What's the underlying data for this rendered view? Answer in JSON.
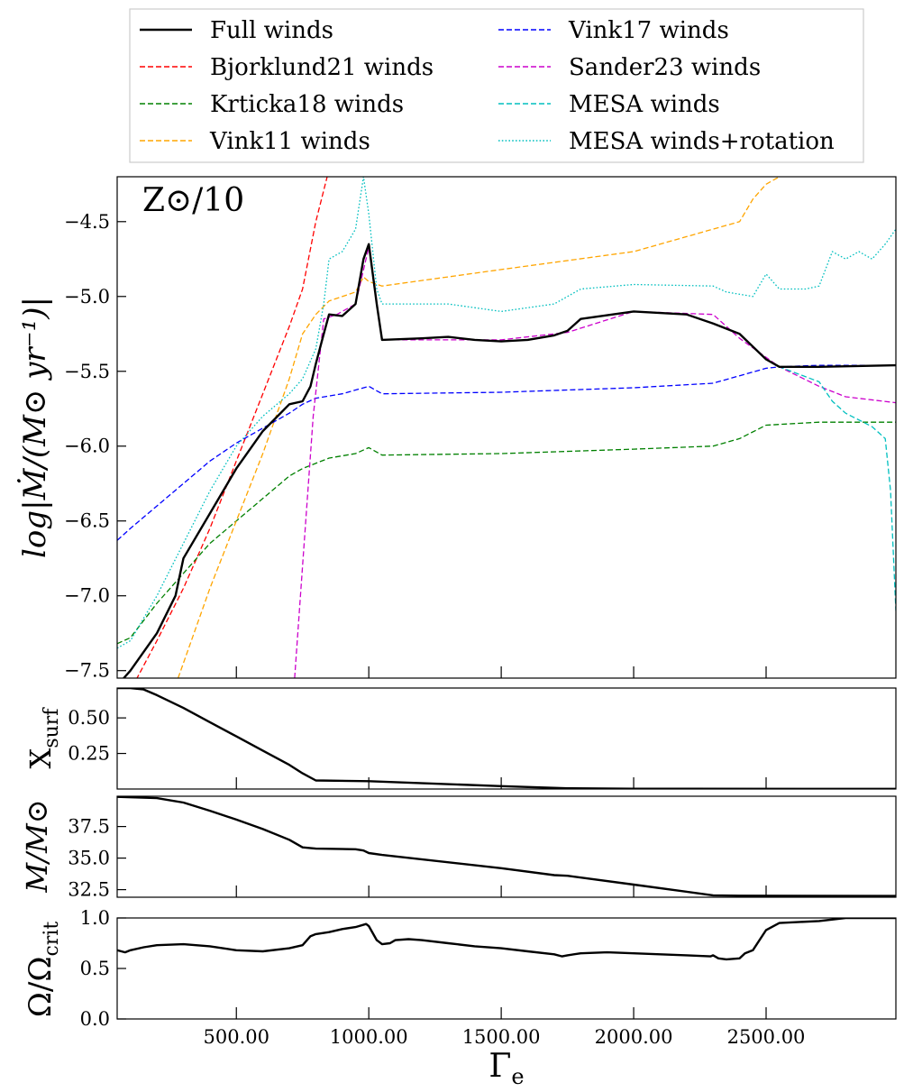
{
  "legend": {
    "entries": [
      {
        "label": "Full winds",
        "color": "#000000",
        "style": "solid"
      },
      {
        "label": "Bjorklund21 winds",
        "color": "#ff0000",
        "style": "dashed"
      },
      {
        "label": "Krticka18 winds",
        "color": "#008000",
        "style": "dashed"
      },
      {
        "label": "Vink11 winds",
        "color": "#ffa500",
        "style": "dashed"
      },
      {
        "label": "Vink17 winds",
        "color": "#0000ff",
        "style": "dashed"
      },
      {
        "label": "Sander23 winds",
        "color": "#cc00cc",
        "style": "dashed"
      },
      {
        "label": "MESA winds",
        "color": "#00bfbf",
        "style": "dashed"
      },
      {
        "label": "MESA winds+rotation",
        "color": "#00bfbf",
        "style": "dotted"
      }
    ]
  },
  "annotation": "Z⊙/10",
  "xlabel_main": "Γ",
  "xlabel_sub": "e",
  "chart_data": [
    {
      "type": "line",
      "panel": "mdot",
      "ylabel": "log|Ṁ/(M⊙ yr⁻¹)|",
      "xlim": [
        50,
        2990
      ],
      "ylim": [
        -7.55,
        -4.2
      ],
      "yticks": [
        -7.5,
        -7.0,
        -6.5,
        -6.0,
        -5.5,
        -5.0,
        -4.5
      ],
      "ytick_labels": [
        "−7.5",
        "−7.0",
        "−6.5",
        "−6.0",
        "−5.5",
        "−5.0",
        "−4.5"
      ],
      "series": [
        {
          "name": "Bjorklund21 winds",
          "color": "#ff0000",
          "style": "dashed",
          "x": [
            50,
            200,
            300,
            400,
            500,
            600,
            700,
            750,
            800,
            850
          ],
          "y": [
            -7.8,
            -7.3,
            -6.95,
            -6.55,
            -6.1,
            -5.65,
            -5.2,
            -4.95,
            -4.5,
            -4.15
          ]
        },
        {
          "name": "Krticka18 winds",
          "color": "#008000",
          "style": "dashed",
          "x": [
            50,
            100,
            200,
            300,
            400,
            500,
            600,
            700,
            750,
            850,
            950,
            1000,
            1050,
            1500,
            2000,
            2300,
            2400,
            2500,
            2700,
            2990
          ],
          "y": [
            -7.32,
            -7.28,
            -7.05,
            -6.85,
            -6.65,
            -6.5,
            -6.35,
            -6.2,
            -6.15,
            -6.08,
            -6.05,
            -6.01,
            -6.06,
            -6.05,
            -6.02,
            -6.0,
            -5.95,
            -5.86,
            -5.84,
            -5.84
          ]
        },
        {
          "name": "Vink11 winds",
          "color": "#ffa500",
          "style": "dashed",
          "x": [
            280,
            400,
            500,
            600,
            700,
            750,
            800,
            850,
            950,
            980,
            1000,
            1050,
            1500,
            2000,
            2300,
            2400,
            2450,
            2500,
            2550
          ],
          "y": [
            -7.55,
            -6.95,
            -6.5,
            -6.05,
            -5.55,
            -5.25,
            -5.12,
            -5.03,
            -4.97,
            -4.87,
            -4.9,
            -4.93,
            -4.82,
            -4.7,
            -4.55,
            -4.5,
            -4.35,
            -4.25,
            -4.2
          ]
        },
        {
          "name": "Vink17 winds",
          "color": "#0000ff",
          "style": "dashed",
          "x": [
            50,
            100,
            200,
            300,
            400,
            500,
            600,
            700,
            750,
            800,
            900,
            1000,
            1050,
            1500,
            2000,
            2300,
            2400,
            2500,
            2550,
            2700,
            2990
          ],
          "y": [
            -6.63,
            -6.55,
            -6.4,
            -6.25,
            -6.1,
            -5.98,
            -5.88,
            -5.78,
            -5.72,
            -5.68,
            -5.65,
            -5.6,
            -5.65,
            -5.64,
            -5.61,
            -5.58,
            -5.53,
            -5.48,
            -5.47,
            -5.46,
            -5.46
          ]
        },
        {
          "name": "Sander23 winds",
          "color": "#cc00cc",
          "style": "dashed",
          "x": [
            720,
            750,
            790,
            830,
            880,
            950,
            1000,
            1050,
            1200,
            1500,
            1750,
            2000,
            2300,
            2400,
            2550,
            2700,
            2800,
            2990
          ],
          "y": [
            -7.55,
            -6.8,
            -5.8,
            -5.15,
            -5.12,
            -5.05,
            -4.67,
            -5.29,
            -5.29,
            -5.29,
            -5.24,
            -5.1,
            -5.12,
            -5.28,
            -5.47,
            -5.6,
            -5.67,
            -5.71
          ]
        },
        {
          "name": "MESA winds",
          "color": "#00bfbf",
          "style": "dashed",
          "x": [
            50,
            100,
            200,
            270,
            300,
            400,
            500,
            600,
            700,
            750,
            780,
            800,
            830,
            850,
            900,
            950,
            980,
            1000,
            1030,
            1050,
            1200,
            1300,
            1400,
            1500,
            1600,
            1700,
            1750,
            1800,
            2000,
            2200,
            2300,
            2400,
            2500,
            2550,
            2700,
            2750,
            2800,
            2900,
            2950,
            2970,
            2990
          ],
          "y": [
            -7.6,
            -7.5,
            -7.25,
            -7.0,
            -6.75,
            -6.45,
            -6.15,
            -5.9,
            -5.72,
            -5.7,
            -5.6,
            -5.45,
            -5.25,
            -5.12,
            -5.13,
            -5.05,
            -4.75,
            -4.65,
            -5.05,
            -5.29,
            -5.28,
            -5.27,
            -5.29,
            -5.3,
            -5.29,
            -5.26,
            -5.23,
            -5.15,
            -5.1,
            -5.12,
            -5.18,
            -5.25,
            -5.42,
            -5.47,
            -5.57,
            -5.7,
            -5.78,
            -5.87,
            -5.95,
            -6.3,
            -7.1
          ]
        },
        {
          "name": "MESA winds+rotation",
          "color": "#00bfbf",
          "style": "dotted",
          "x": [
            50,
            100,
            200,
            300,
            400,
            500,
            600,
            700,
            750,
            800,
            830,
            850,
            900,
            950,
            980,
            1000,
            1030,
            1050,
            1100,
            1300,
            1500,
            1700,
            1800,
            2000,
            2300,
            2350,
            2450,
            2500,
            2550,
            2600,
            2650,
            2700,
            2750,
            2800,
            2850,
            2900,
            2950,
            2990
          ],
          "y": [
            -7.35,
            -7.3,
            -7.0,
            -6.65,
            -6.3,
            -6.0,
            -5.8,
            -5.65,
            -5.55,
            -5.35,
            -5.05,
            -4.75,
            -4.7,
            -4.55,
            -4.2,
            -4.45,
            -4.95,
            -5.05,
            -5.05,
            -5.05,
            -5.1,
            -5.05,
            -4.95,
            -4.92,
            -4.93,
            -4.97,
            -5.0,
            -4.85,
            -4.95,
            -4.95,
            -4.95,
            -4.93,
            -4.7,
            -4.75,
            -4.7,
            -4.75,
            -4.65,
            -4.55
          ]
        },
        {
          "name": "Full winds",
          "color": "#000000",
          "style": "solid",
          "x": [
            50,
            100,
            200,
            270,
            300,
            400,
            500,
            600,
            700,
            750,
            780,
            800,
            830,
            850,
            900,
            950,
            980,
            1000,
            1030,
            1050,
            1200,
            1300,
            1400,
            1500,
            1600,
            1700,
            1750,
            1800,
            2000,
            2200,
            2300,
            2400,
            2500,
            2550,
            2700,
            2990
          ],
          "y": [
            -7.6,
            -7.5,
            -7.25,
            -7.0,
            -6.75,
            -6.45,
            -6.15,
            -5.9,
            -5.72,
            -5.7,
            -5.6,
            -5.45,
            -5.25,
            -5.12,
            -5.13,
            -5.05,
            -4.75,
            -4.65,
            -5.05,
            -5.29,
            -5.28,
            -5.27,
            -5.29,
            -5.3,
            -5.29,
            -5.26,
            -5.23,
            -5.15,
            -5.1,
            -5.12,
            -5.18,
            -5.25,
            -5.42,
            -5.47,
            -5.47,
            -5.46
          ]
        }
      ]
    },
    {
      "type": "line",
      "panel": "xsurf",
      "ylabel": "X",
      "ylabel_sub": "surf",
      "xlim": [
        50,
        2990
      ],
      "ylim": [
        0.0,
        0.71
      ],
      "yticks": [
        0.25,
        0.5
      ],
      "ytick_labels": [
        "0.25",
        "0.50"
      ],
      "series": [
        {
          "name": "Full winds",
          "color": "#000000",
          "style": "solid",
          "x": [
            50,
            100,
            150,
            200,
            300,
            400,
            500,
            600,
            700,
            750,
            800,
            1000,
            1500,
            1750,
            2000,
            2990
          ],
          "y": [
            0.71,
            0.71,
            0.7,
            0.66,
            0.57,
            0.47,
            0.37,
            0.27,
            0.17,
            0.11,
            0.06,
            0.055,
            0.02,
            0.005,
            0.002,
            0.001
          ]
        }
      ]
    },
    {
      "type": "line",
      "panel": "mass",
      "ylabel": "M/M⊙",
      "xlim": [
        50,
        2990
      ],
      "ylim": [
        31.9,
        39.9
      ],
      "yticks": [
        32.5,
        35.0,
        37.5
      ],
      "ytick_labels": [
        "32.5",
        "35.0",
        "37.5"
      ],
      "series": [
        {
          "name": "Full winds",
          "color": "#000000",
          "style": "solid",
          "x": [
            50,
            200,
            300,
            400,
            500,
            600,
            700,
            750,
            800,
            950,
            980,
            1000,
            1050,
            1500,
            1700,
            1750,
            2000,
            2300,
            2400,
            2990
          ],
          "y": [
            39.85,
            39.75,
            39.4,
            38.75,
            38.05,
            37.3,
            36.45,
            35.85,
            35.75,
            35.7,
            35.6,
            35.4,
            35.25,
            34.2,
            33.65,
            33.6,
            32.9,
            32.05,
            32.02,
            32.0
          ]
        }
      ]
    },
    {
      "type": "line",
      "panel": "omega",
      "ylabel": "Ω/Ω",
      "ylabel_sub": "crit",
      "xlim": [
        50,
        2990
      ],
      "ylim": [
        0.0,
        1.0
      ],
      "yticks": [
        0.0,
        0.5,
        1.0
      ],
      "ytick_labels": [
        "0.0",
        "0.5",
        "1.0"
      ],
      "xticks": [
        500,
        1000,
        1500,
        2000,
        2500
      ],
      "xtick_labels": [
        "500.00",
        "1000.00",
        "1500.00",
        "2000.00",
        "2500.00"
      ],
      "series": [
        {
          "name": "Full winds",
          "color": "#000000",
          "style": "solid",
          "x": [
            50,
            80,
            100,
            150,
            200,
            300,
            400,
            500,
            600,
            700,
            750,
            780,
            800,
            850,
            900,
            950,
            990,
            1000,
            1030,
            1050,
            1080,
            1100,
            1150,
            1200,
            1300,
            1400,
            1500,
            1600,
            1700,
            1730,
            1750,
            1800,
            1900,
            2000,
            2200,
            2290,
            2300,
            2320,
            2350,
            2400,
            2420,
            2450,
            2500,
            2550,
            2700,
            2800,
            2990
          ],
          "y": [
            0.68,
            0.66,
            0.68,
            0.71,
            0.73,
            0.74,
            0.72,
            0.68,
            0.67,
            0.7,
            0.73,
            0.82,
            0.84,
            0.86,
            0.89,
            0.91,
            0.94,
            0.92,
            0.78,
            0.74,
            0.75,
            0.78,
            0.79,
            0.78,
            0.75,
            0.72,
            0.7,
            0.67,
            0.64,
            0.62,
            0.63,
            0.65,
            0.66,
            0.65,
            0.63,
            0.62,
            0.63,
            0.6,
            0.59,
            0.6,
            0.65,
            0.68,
            0.88,
            0.95,
            0.97,
            1.0,
            1.0
          ]
        }
      ]
    }
  ]
}
